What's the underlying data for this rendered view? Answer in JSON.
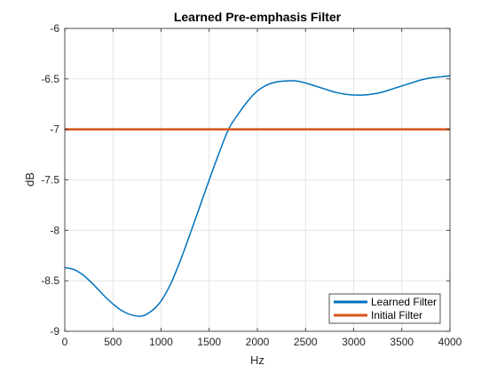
{
  "chart_data": {
    "type": "line",
    "title": "Learned Pre-emphasis Filter",
    "xlabel": "Hz",
    "ylabel": "dB",
    "xlim": [
      0,
      4000
    ],
    "ylim": [
      -9,
      -6
    ],
    "x_ticks": [
      0,
      500,
      1000,
      1500,
      2000,
      2500,
      3000,
      3500,
      4000
    ],
    "y_ticks": [
      -9,
      -8.5,
      -8,
      -7.5,
      -7,
      -6.5,
      -6
    ],
    "x_tick_labels": [
      "0",
      "500",
      "1000",
      "1500",
      "2000",
      "2500",
      "3000",
      "3500",
      "4000"
    ],
    "y_tick_labels": [
      "-9",
      "-8.5",
      "-8",
      "-7.5",
      "-7",
      "-6.5",
      "-6"
    ],
    "grid": true,
    "legend_position": "bottom-right",
    "series": [
      {
        "name": "Learned Filter",
        "color": "#0072BD",
        "x": [
          0,
          100,
          200,
          300,
          400,
          500,
          600,
          700,
          800,
          900,
          1000,
          1100,
          1200,
          1300,
          1400,
          1500,
          1600,
          1700,
          1800,
          1900,
          2000,
          2100,
          2200,
          2300,
          2400,
          2500,
          2600,
          2700,
          2800,
          2900,
          3000,
          3100,
          3200,
          3300,
          3400,
          3500,
          3600,
          3700,
          3800,
          3900,
          4000
        ],
        "y": [
          -8.37,
          -8.39,
          -8.45,
          -8.54,
          -8.64,
          -8.73,
          -8.8,
          -8.84,
          -8.85,
          -8.8,
          -8.7,
          -8.53,
          -8.3,
          -8.04,
          -7.77,
          -7.5,
          -7.24,
          -7.0,
          -6.85,
          -6.72,
          -6.62,
          -6.56,
          -6.53,
          -6.52,
          -6.52,
          -6.54,
          -6.57,
          -6.6,
          -6.63,
          -6.65,
          -6.66,
          -6.66,
          -6.65,
          -6.63,
          -6.6,
          -6.57,
          -6.54,
          -6.51,
          -6.49,
          -6.48,
          -6.47
        ]
      },
      {
        "name": "Initial Filter",
        "color": "#D95319",
        "x": [
          0,
          4000
        ],
        "y": [
          -7,
          -7
        ]
      }
    ]
  }
}
